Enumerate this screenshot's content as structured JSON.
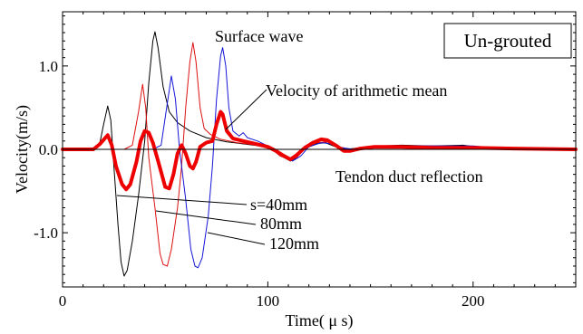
{
  "chart_data": {
    "type": "line",
    "xlabel": "Time( μ s)",
    "ylabel": "Velocity(m/s)",
    "xlim": [
      0,
      250
    ],
    "ylim": [
      -1.65,
      1.65
    ],
    "xticks": [
      0,
      100,
      200
    ],
    "xtick_labels": [
      "0",
      "100",
      "200"
    ],
    "yticks": [
      -1.0,
      0.0,
      1.0
    ],
    "ytick_labels": [
      "-1.0",
      "0.0",
      "1.0"
    ],
    "grid": false,
    "boxed_label": "Un-grouted",
    "annotations": {
      "surface_wave": "Surface wave",
      "arithmetic_mean": "Velocity of arithmetic mean",
      "tendon": "Tendon duct reflection",
      "s40": "s=40mm",
      "s80": "80mm",
      "s120": "120mm"
    },
    "series": [
      {
        "key": "s40",
        "color": "#000000",
        "width": 1,
        "points": [
          [
            0,
            0
          ],
          [
            15,
            0
          ],
          [
            18,
            0.06
          ],
          [
            20,
            0.3
          ],
          [
            22,
            0.52
          ],
          [
            23.5,
            0.35
          ],
          [
            25,
            -0.2
          ],
          [
            27,
            -0.9
          ],
          [
            28.5,
            -1.35
          ],
          [
            30,
            -1.52
          ],
          [
            31.5,
            -1.45
          ],
          [
            34,
            -1.1
          ],
          [
            37,
            -0.55
          ],
          [
            40,
            0.1
          ],
          [
            42,
            0.8
          ],
          [
            44,
            1.3
          ],
          [
            45,
            1.41
          ],
          [
            46.5,
            1.22
          ],
          [
            49,
            0.75
          ],
          [
            52,
            0.45
          ],
          [
            56,
            0.32
          ],
          [
            62,
            0.22
          ],
          [
            70,
            0.14
          ],
          [
            80,
            0.09
          ],
          [
            90,
            0.06
          ],
          [
            100,
            0.03
          ],
          [
            104,
            -0.02
          ],
          [
            108,
            -0.1
          ],
          [
            111,
            -0.14
          ],
          [
            114,
            -0.1
          ],
          [
            118,
            0.01
          ],
          [
            124,
            0.07
          ],
          [
            128,
            0.08
          ],
          [
            133,
            0.03
          ],
          [
            138,
            0.0
          ],
          [
            145,
            0.02
          ],
          [
            155,
            0.04
          ],
          [
            165,
            0.05
          ],
          [
            180,
            0.04
          ],
          [
            195,
            0.05
          ],
          [
            205,
            0.02
          ],
          [
            220,
            0.01
          ],
          [
            250,
            0.0
          ]
        ]
      },
      {
        "key": "s80",
        "color": "#dd1111",
        "width": 1,
        "points": [
          [
            0,
            0
          ],
          [
            30,
            0
          ],
          [
            34,
            0.05
          ],
          [
            37,
            0.45
          ],
          [
            39,
            0.78
          ],
          [
            40.5,
            0.5
          ],
          [
            42,
            -0.1
          ],
          [
            45,
            -0.7
          ],
          [
            47.5,
            -1.25
          ],
          [
            49,
            -1.38
          ],
          [
            51,
            -1.4
          ],
          [
            53,
            -1.2
          ],
          [
            56,
            -0.7
          ],
          [
            58,
            -0.2
          ],
          [
            60,
            0.5
          ],
          [
            62,
            1.05
          ],
          [
            63.5,
            1.28
          ],
          [
            65,
            1.05
          ],
          [
            67,
            0.5
          ],
          [
            69,
            0.25
          ],
          [
            72,
            0.18
          ],
          [
            77,
            0.12
          ],
          [
            85,
            0.08
          ],
          [
            95,
            0.05
          ],
          [
            102,
            0.0
          ],
          [
            106,
            -0.08
          ],
          [
            110,
            -0.12
          ],
          [
            114,
            -0.1
          ],
          [
            118,
            0.02
          ],
          [
            124,
            0.08
          ],
          [
            129,
            0.09
          ],
          [
            133,
            0.04
          ],
          [
            140,
            0.0
          ],
          [
            148,
            0.02
          ],
          [
            160,
            0.04
          ],
          [
            180,
            0.04
          ],
          [
            200,
            0.03
          ],
          [
            215,
            0.01
          ],
          [
            250,
            0.0
          ]
        ]
      },
      {
        "key": "s120",
        "color": "#1515d8",
        "width": 1,
        "points": [
          [
            0,
            0
          ],
          [
            44,
            0
          ],
          [
            48,
            0.05
          ],
          [
            51,
            0.55
          ],
          [
            53,
            0.88
          ],
          [
            55,
            0.6
          ],
          [
            57,
            0.0
          ],
          [
            60,
            -0.6
          ],
          [
            62.5,
            -1.2
          ],
          [
            64.5,
            -1.4
          ],
          [
            66,
            -1.42
          ],
          [
            68,
            -1.3
          ],
          [
            71,
            -0.8
          ],
          [
            73,
            -0.2
          ],
          [
            75,
            0.6
          ],
          [
            77,
            1.12
          ],
          [
            78,
            1.22
          ],
          [
            79.5,
            1.0
          ],
          [
            81,
            0.5
          ],
          [
            83,
            0.22
          ],
          [
            86,
            0.16
          ],
          [
            88,
            0.2
          ],
          [
            90,
            0.14
          ],
          [
            95,
            0.1
          ],
          [
            100,
            0.04
          ],
          [
            104,
            -0.02
          ],
          [
            108,
            -0.1
          ],
          [
            112,
            -0.14
          ],
          [
            116,
            -0.08
          ],
          [
            120,
            0.03
          ],
          [
            126,
            0.08
          ],
          [
            130,
            0.07
          ],
          [
            136,
            0.02
          ],
          [
            142,
            0.0
          ],
          [
            150,
            0.02
          ],
          [
            165,
            0.04
          ],
          [
            180,
            0.04
          ],
          [
            200,
            0.04
          ],
          [
            215,
            0.01
          ],
          [
            250,
            0.0
          ]
        ]
      },
      {
        "key": "mean",
        "color": "#ee0000",
        "width": 4,
        "points": [
          [
            0,
            0
          ],
          [
            15,
            0
          ],
          [
            18,
            0.06
          ],
          [
            22,
            0.17
          ],
          [
            24,
            0.05
          ],
          [
            26,
            -0.2
          ],
          [
            29,
            -0.42
          ],
          [
            31,
            -0.48
          ],
          [
            33,
            -0.42
          ],
          [
            36,
            -0.15
          ],
          [
            38,
            0.1
          ],
          [
            40,
            0.22
          ],
          [
            42,
            0.2
          ],
          [
            44,
            0.08
          ],
          [
            47,
            -0.18
          ],
          [
            50,
            -0.45
          ],
          [
            52,
            -0.47
          ],
          [
            54,
            -0.3
          ],
          [
            56,
            -0.05
          ],
          [
            58,
            0.05
          ],
          [
            60,
            -0.05
          ],
          [
            62,
            -0.2
          ],
          [
            63.5,
            -0.23
          ],
          [
            65,
            -0.15
          ],
          [
            67,
            0.03
          ],
          [
            70,
            0.08
          ],
          [
            73,
            0.1
          ],
          [
            75,
            0.3
          ],
          [
            77,
            0.45
          ],
          [
            78,
            0.42
          ],
          [
            80,
            0.22
          ],
          [
            83,
            0.13
          ],
          [
            88,
            0.1
          ],
          [
            95,
            0.06
          ],
          [
            100,
            0.03
          ],
          [
            104,
            -0.02
          ],
          [
            108,
            -0.08
          ],
          [
            111,
            -0.12
          ],
          [
            114,
            -0.07
          ],
          [
            118,
            0.02
          ],
          [
            122,
            0.08
          ],
          [
            126,
            0.12
          ],
          [
            129,
            0.11
          ],
          [
            133,
            0.05
          ],
          [
            137,
            -0.02
          ],
          [
            140,
            -0.02
          ],
          [
            145,
            0.01
          ],
          [
            152,
            0.03
          ],
          [
            165,
            0.03
          ],
          [
            180,
            0.02
          ],
          [
            200,
            0.02
          ],
          [
            220,
            0.01
          ],
          [
            250,
            0.0
          ]
        ]
      }
    ]
  }
}
